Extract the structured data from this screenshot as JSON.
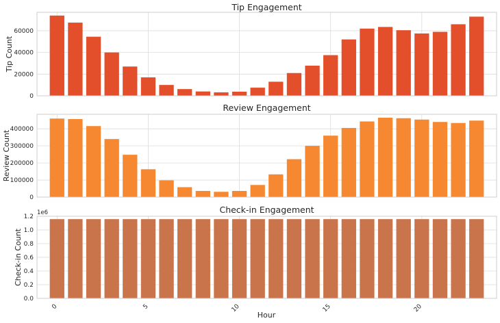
{
  "figure": {
    "xlabel": "Hour"
  },
  "chart_data": [
    {
      "type": "bar",
      "title": "Tip Engagement",
      "xlabel": "",
      "ylabel": "Tip Count",
      "color": "#e34f2a",
      "x": [
        0,
        1,
        2,
        3,
        4,
        5,
        6,
        7,
        8,
        9,
        10,
        11,
        12,
        13,
        14,
        15,
        16,
        17,
        18,
        19,
        20,
        21,
        22,
        23
      ],
      "values": [
        74000,
        67500,
        54500,
        40000,
        27000,
        17000,
        10000,
        6200,
        4000,
        3200,
        3800,
        7500,
        13000,
        21000,
        27800,
        37500,
        52000,
        62000,
        63500,
        60500,
        57500,
        59000,
        66000,
        73000
      ],
      "ylim": [
        0,
        77000
      ],
      "yticks": [
        0,
        20000,
        40000,
        60000
      ],
      "ytick_labels": [
        "0",
        "20000",
        "40000",
        "60000"
      ],
      "offset_text": "",
      "grid": true
    },
    {
      "type": "bar",
      "title": "Review Engagement",
      "xlabel": "",
      "ylabel": "Review Count",
      "color": "#f58831",
      "x": [
        0,
        1,
        2,
        3,
        4,
        5,
        6,
        7,
        8,
        9,
        10,
        11,
        12,
        13,
        14,
        15,
        16,
        17,
        18,
        19,
        20,
        21,
        22,
        23
      ],
      "values": [
        460000,
        457000,
        416000,
        340000,
        248000,
        163000,
        98000,
        58000,
        36000,
        31000,
        36000,
        71000,
        133000,
        222000,
        300000,
        360000,
        405000,
        443000,
        465000,
        462000,
        454000,
        440000,
        434000,
        448000
      ],
      "ylim": [
        0,
        485000
      ],
      "yticks": [
        0,
        100000,
        200000,
        300000,
        400000
      ],
      "ytick_labels": [
        "0",
        "100000",
        "200000",
        "300000",
        "400000"
      ],
      "offset_text": "",
      "grid": true
    },
    {
      "type": "bar",
      "title": "Check-in Engagement",
      "xlabel": "Hour",
      "ylabel": "Check-in Count",
      "color": "#c9744a",
      "x": [
        0,
        1,
        2,
        3,
        4,
        5,
        6,
        7,
        8,
        9,
        10,
        11,
        12,
        13,
        14,
        15,
        16,
        17,
        18,
        19,
        20,
        21,
        22,
        23
      ],
      "values": [
        1158000,
        1158000,
        1158000,
        1158000,
        1158000,
        1158000,
        1158000,
        1158000,
        1158000,
        1158000,
        1158000,
        1158000,
        1158000,
        1158000,
        1158000,
        1158000,
        1158000,
        1158000,
        1158000,
        1158000,
        1158000,
        1158000,
        1158000,
        1158000
      ],
      "ylim": [
        0,
        1200000
      ],
      "yticks": [
        0,
        200000,
        400000,
        600000,
        800000,
        1000000,
        1200000
      ],
      "ytick_labels": [
        "0.0",
        "0.2",
        "0.4",
        "0.6",
        "0.8",
        "1.0",
        "1.2"
      ],
      "offset_text": "1e6",
      "xticks": [
        0,
        5,
        10,
        15,
        20
      ],
      "xtick_labels": [
        "0",
        "5",
        "10",
        "15",
        "20"
      ],
      "grid": true
    }
  ]
}
